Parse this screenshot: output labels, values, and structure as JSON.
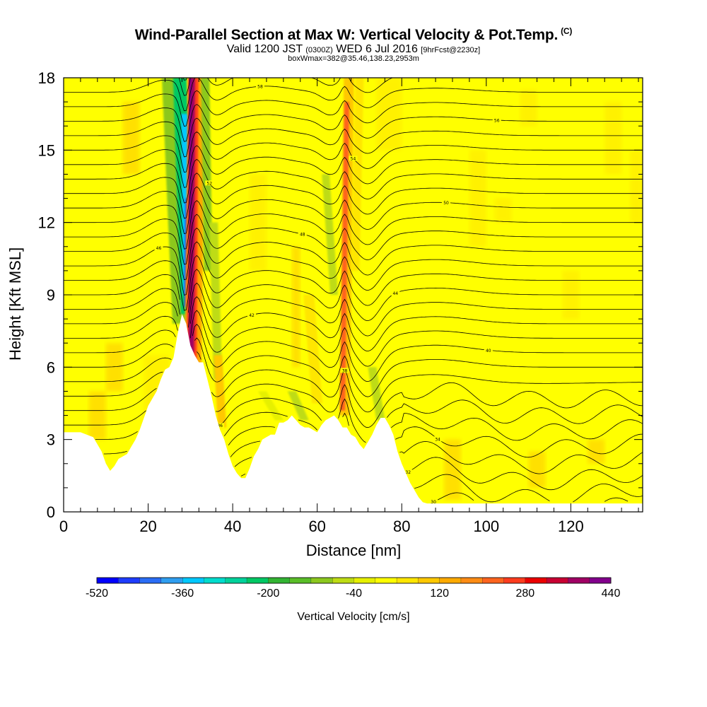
{
  "header": {
    "title": "Wind-Parallel Section at Max W: Vertical Velocity & Pot.Temp.",
    "title_mark": "(C)",
    "valid_prefix": "Valid 1200 JST",
    "valid_utc": "(0300Z)",
    "valid_date": "WED 6 Jul 2016",
    "forecast": "[9hrFcst@2230z]",
    "box_info": "boxWmax=382@35.46,138.23,2953m"
  },
  "chart_data": {
    "type": "heatmap",
    "title": "Wind-Parallel Section at Max W: Vertical Velocity & Pot.Temp.",
    "xlabel": "Distance [nm]",
    "ylabel": "Height [Kft MSL]",
    "xlim": [
      0,
      137
    ],
    "ylim": [
      0,
      18
    ],
    "x_ticks": [
      0,
      20,
      40,
      60,
      80,
      100,
      120
    ],
    "y_ticks": [
      0,
      3,
      6,
      9,
      12,
      15,
      18
    ],
    "grid": false,
    "colorbar": {
      "label": "Vertical Velocity [cm/s]",
      "min": -520,
      "max": 440,
      "step": 40,
      "tick_labels": [
        "-520",
        "-360",
        "-200",
        "-40",
        "120",
        "280",
        "440"
      ],
      "colors": [
        "#0000ff",
        "#1e3cff",
        "#2a6df6",
        "#2f9ef0",
        "#00c8ff",
        "#00dccd",
        "#00d29b",
        "#00c864",
        "#32b432",
        "#5abe28",
        "#8cc81e",
        "#bedc14",
        "#e6f000",
        "#ffff00",
        "#ffe600",
        "#ffc800",
        "#ffaa00",
        "#ff8c14",
        "#ff641e",
        "#ff3c1e",
        "#eb0000",
        "#c80032",
        "#a00064",
        "#82008c",
        "#640096"
      ]
    },
    "terrain_kft": [
      [
        0,
        3.3
      ],
      [
        4,
        3.3
      ],
      [
        7,
        3.1
      ],
      [
        9,
        2.5
      ],
      [
        10,
        2.0
      ],
      [
        11,
        1.7
      ],
      [
        12,
        1.9
      ],
      [
        13,
        2.2
      ],
      [
        15,
        2.4
      ],
      [
        16,
        2.7
      ],
      [
        17,
        3.0
      ],
      [
        18,
        3.4
      ],
      [
        19,
        3.9
      ],
      [
        20,
        4.4
      ],
      [
        21,
        4.7
      ],
      [
        22,
        5.0
      ],
      [
        23,
        5.5
      ],
      [
        24,
        5.9
      ],
      [
        25,
        6.0
      ],
      [
        26,
        6.4
      ],
      [
        27,
        7.4
      ],
      [
        28,
        8.2
      ],
      [
        29,
        7.8
      ],
      [
        30,
        6.9
      ],
      [
        31,
        6.5
      ],
      [
        32,
        6.2
      ],
      [
        33,
        6.2
      ],
      [
        34,
        5.5
      ],
      [
        35,
        4.8
      ],
      [
        36,
        4.0
      ],
      [
        37,
        3.4
      ],
      [
        38,
        3.0
      ],
      [
        39,
        2.4
      ],
      [
        40,
        1.9
      ],
      [
        41,
        1.6
      ],
      [
        42,
        1.4
      ],
      [
        43,
        1.4
      ],
      [
        44,
        1.8
      ],
      [
        45,
        2.3
      ],
      [
        46,
        2.6
      ],
      [
        47,
        3.0
      ],
      [
        48,
        3.1
      ],
      [
        49,
        3.2
      ],
      [
        50,
        3.2
      ],
      [
        51,
        3.7
      ],
      [
        52,
        3.7
      ],
      [
        53,
        3.8
      ],
      [
        54,
        4.0
      ],
      [
        55,
        3.8
      ],
      [
        56,
        3.6
      ],
      [
        57,
        3.5
      ],
      [
        58,
        3.5
      ],
      [
        59,
        3.4
      ],
      [
        60,
        3.3
      ],
      [
        61,
        3.6
      ],
      [
        62,
        3.8
      ],
      [
        63,
        3.9
      ],
      [
        64,
        4.0
      ],
      [
        65,
        3.8
      ],
      [
        66,
        3.5
      ],
      [
        67,
        3.5
      ],
      [
        68,
        3.2
      ],
      [
        69,
        3.1
      ],
      [
        70,
        2.8
      ],
      [
        71,
        2.6
      ],
      [
        72,
        2.9
      ],
      [
        73,
        3.2
      ],
      [
        74,
        3.6
      ],
      [
        75,
        3.9
      ],
      [
        76,
        3.9
      ],
      [
        77,
        3.6
      ],
      [
        78,
        3.2
      ],
      [
        79,
        2.5
      ],
      [
        80,
        2.0
      ],
      [
        81,
        1.6
      ],
      [
        82,
        1.2
      ],
      [
        83,
        0.9
      ],
      [
        84,
        0.6
      ],
      [
        85,
        0.4
      ],
      [
        86,
        0.35
      ],
      [
        137,
        0.35
      ]
    ],
    "max_vertical_velocity_cm_s": 382,
    "features": [
      {
        "name": "strong updraft",
        "x": 30.5,
        "y_range": [
          6.0,
          18
        ],
        "w_cm_s": 380
      },
      {
        "name": "downdraft",
        "x": 28.8,
        "y_range": [
          8.5,
          16
        ],
        "w_cm_s": -360
      },
      {
        "name": "updraft",
        "x": 67,
        "y_range": [
          3.8,
          18
        ],
        "w_cm_s": 200
      },
      {
        "name": "updraft",
        "x": 37,
        "y_range": [
          3.5,
          6.5
        ],
        "w_cm_s": 120
      }
    ],
    "isentropes_K": {
      "spacing_K": 1,
      "count": 31,
      "contour_label_values": [
        "30",
        "32",
        "34",
        "36",
        "38",
        "40",
        "42",
        "44",
        "46",
        "48",
        "50",
        "52",
        "54",
        "56",
        "58",
        "60",
        "62"
      ]
    }
  }
}
